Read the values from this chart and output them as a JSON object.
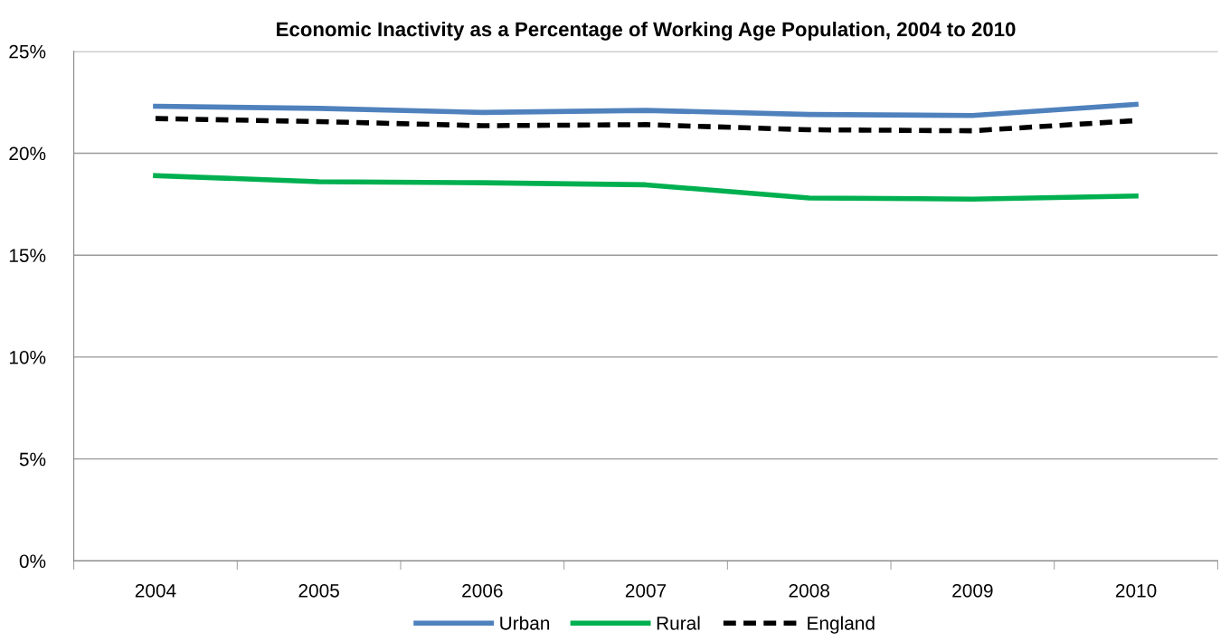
{
  "chart_data": {
    "type": "line",
    "title": "Economic Inactivity as a Percentage of Working Age Population, 2004 to 2010",
    "categories": [
      "2004",
      "2005",
      "2006",
      "2007",
      "2008",
      "2009",
      "2010"
    ],
    "series": [
      {
        "name": "Urban",
        "color": "#4f81bd",
        "values": [
          22.3,
          22.2,
          22.0,
          22.1,
          21.9,
          21.85,
          22.4
        ]
      },
      {
        "name": "Rural",
        "color": "#00b050",
        "values": [
          18.9,
          18.6,
          18.55,
          18.45,
          17.8,
          17.75,
          17.9
        ]
      },
      {
        "name": "England",
        "color": "#000000",
        "line_style": "dashed",
        "values": [
          21.7,
          21.55,
          21.35,
          21.4,
          21.15,
          21.1,
          21.6
        ]
      }
    ],
    "ylim": [
      0,
      25
    ],
    "yticks": [
      {
        "value": 0,
        "label": "0%"
      },
      {
        "value": 5,
        "label": "5%"
      },
      {
        "value": 10,
        "label": "10%"
      },
      {
        "value": 15,
        "label": "15%"
      },
      {
        "value": 20,
        "label": "20%"
      },
      {
        "value": 25,
        "label": "25%"
      }
    ],
    "grid": "y",
    "legend": "bottom",
    "marker": "none"
  }
}
